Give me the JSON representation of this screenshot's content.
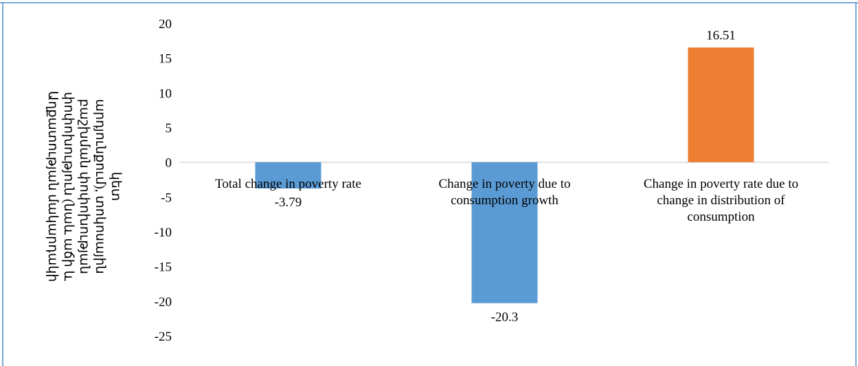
{
  "header_fragment": "",
  "chart_data": {
    "type": "bar",
    "title": "",
    "xlabel": "",
    "ylabel_lines": [
      "Աղքատության մակարդակի",
      "փոփոխություն (նաև աճի և",
      "բաշխման փոփոխության",
      "արդյունքում), տոկոսային",
      "կետ"
    ],
    "categories": [
      [
        "Total change in poverty rate"
      ],
      [
        "Change in poverty due to",
        "consumption growth"
      ],
      [
        "Change in poverty rate due to",
        "change in distribution of",
        "consumption"
      ]
    ],
    "values": [
      -3.79,
      -20.3,
      16.51
    ],
    "value_labels": [
      "-3.79",
      "-20.3",
      "16.51"
    ],
    "bar_colors": [
      "#5b9bd5",
      "#5b9bd5",
      "#ed7d31"
    ],
    "ylim": [
      -25,
      20
    ],
    "yticks": [
      20,
      15,
      10,
      5,
      0,
      -5,
      -10,
      -15,
      -20,
      -25
    ],
    "grid": false,
    "legend": "none",
    "frame_color": "#4a8cc7",
    "axis_color": "#d9d9d9"
  }
}
